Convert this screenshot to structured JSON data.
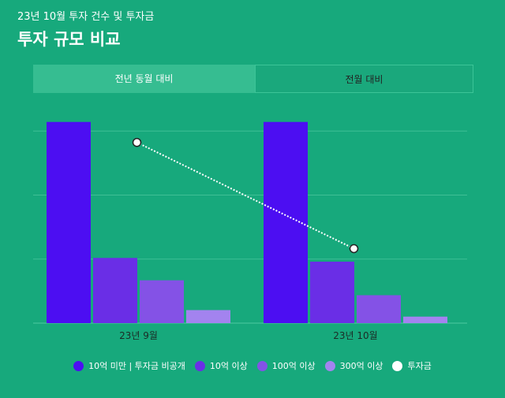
{
  "header": {
    "subtitle": "23년 10월 투자 건수 및 투자금",
    "title": "투자 규모 비교"
  },
  "tabs": [
    {
      "label": "전년 동월 대비",
      "active": false
    },
    {
      "label": "전월 대비",
      "active": true
    }
  ],
  "colors": {
    "background": "#17a97c",
    "series": [
      "#4c0ef2",
      "#6a2ee6",
      "#8452e6",
      "#a383ef"
    ],
    "line": "#ffffff"
  },
  "chart_data": {
    "type": "bar",
    "categories": [
      "23년 9월",
      "23년 10월"
    ],
    "series": [
      {
        "name": "10억 미만 | 투자금 비공개",
        "values": [
          108,
          108
        ]
      },
      {
        "name": "10억 이상",
        "values": [
          35,
          33
        ]
      },
      {
        "name": "100억 이상",
        "values": [
          23,
          15
        ]
      },
      {
        "name": "300억 이상",
        "values": [
          7,
          3.5
        ]
      }
    ],
    "line_series": {
      "name": "투자금",
      "values": [
        97,
        40
      ]
    },
    "ylim": [
      0,
      110
    ],
    "grid": true,
    "legend_position": "bottom"
  }
}
